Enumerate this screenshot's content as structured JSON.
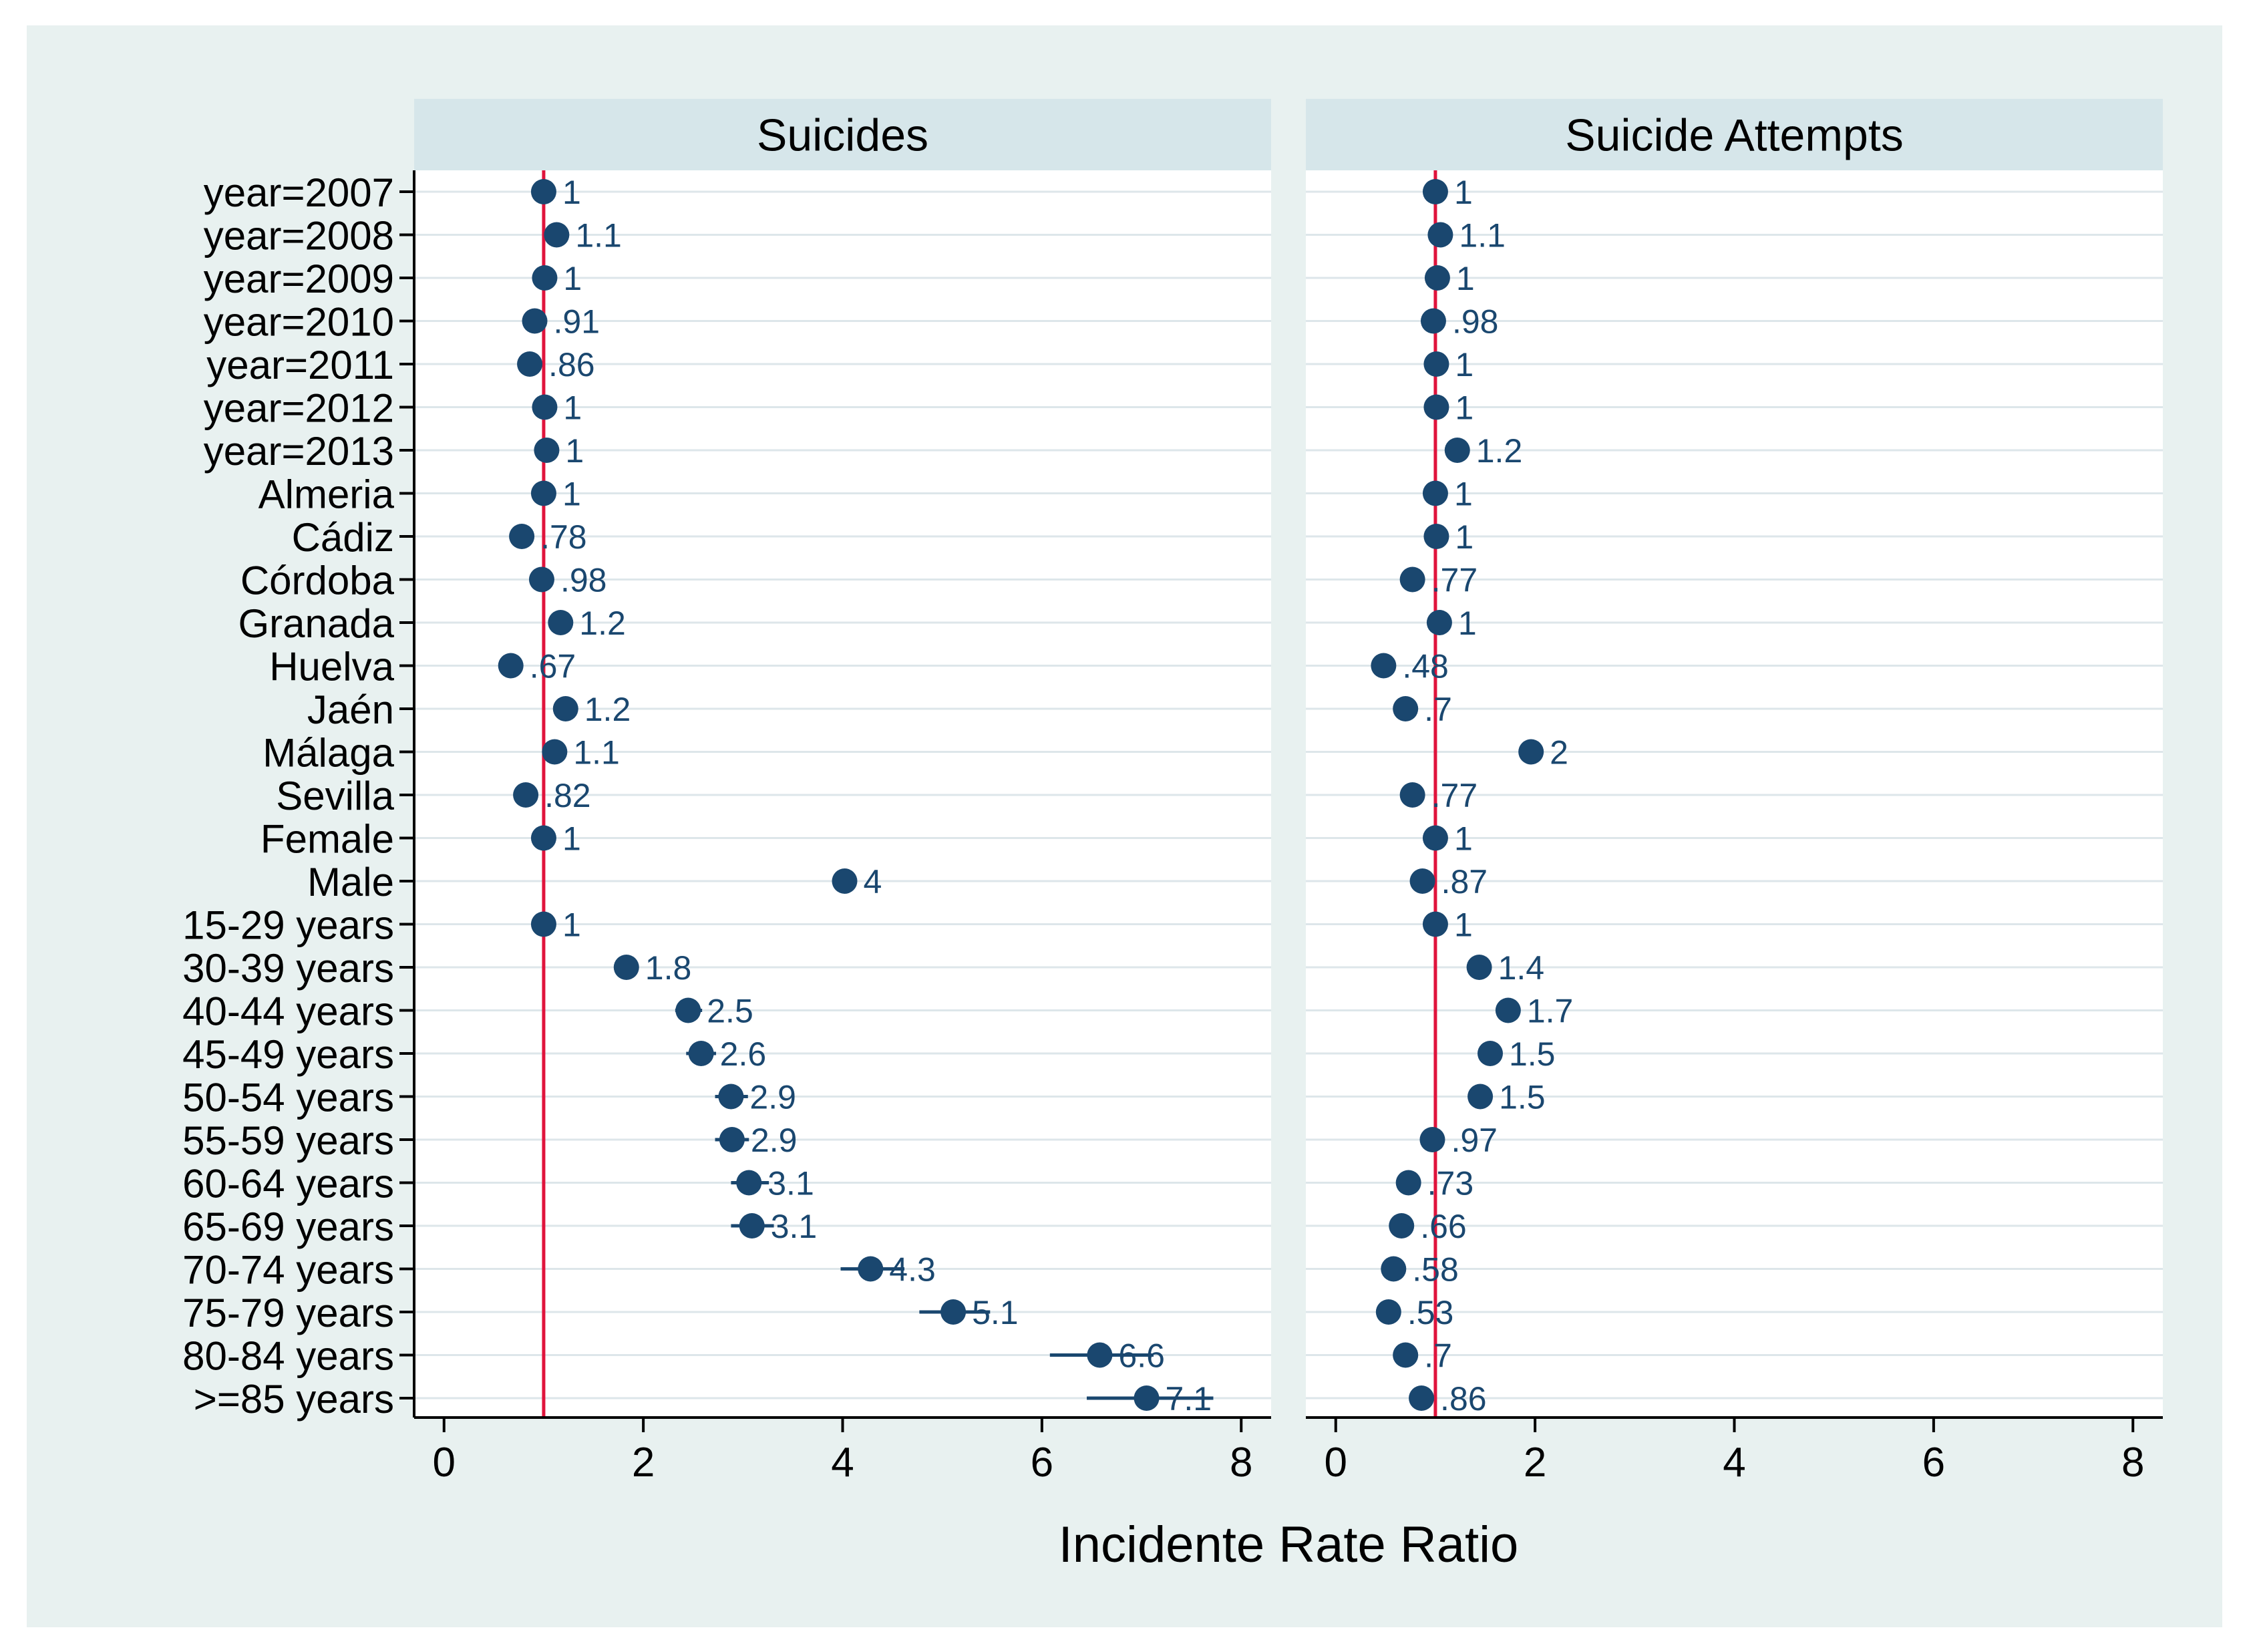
{
  "colors": {
    "page_bg": "#ffffff",
    "outer_bg": "#e8f1f0",
    "plot_bg": "#ffffff",
    "strip_bg": "#d6e6ea",
    "grid": "#dde6ea",
    "point": "#1a476f",
    "label": "#1a476f",
    "reference_line": "#e0143c",
    "axis": "#000000",
    "text": "#000000"
  },
  "chart_data": {
    "type": "scatter",
    "subtype": "coefficient-plot",
    "xlabel": "Incidente Rate Ratio",
    "xlim": [
      -0.3,
      8.3
    ],
    "xticks": [
      0,
      2,
      4,
      6,
      8
    ],
    "reference_line": 1,
    "grid": true,
    "categories": [
      "year=2007",
      "year=2008",
      "year=2009",
      "year=2010",
      "year=2011",
      "year=2012",
      "year=2013",
      "Almeria",
      "Cádiz",
      "Córdoba",
      "Granada",
      "Huelva",
      "Jaén",
      "Málaga",
      "Sevilla",
      "Female",
      "Male",
      "15-29 years",
      "30-39 years",
      "40-44 years",
      "45-49 years",
      "50-54 years",
      "55-59 years",
      "60-64 years",
      "65-69 years",
      "70-74 years",
      "75-79 years",
      "80-84 years",
      ">=85 years"
    ],
    "panels": [
      {
        "title": "Suicides",
        "values": [
          1,
          1.13,
          1.01,
          0.91,
          0.86,
          1.01,
          1.03,
          1,
          0.78,
          0.98,
          1.17,
          0.67,
          1.22,
          1.11,
          0.82,
          1,
          4.02,
          1,
          1.83,
          2.45,
          2.58,
          2.88,
          2.89,
          3.06,
          3.09,
          4.28,
          5.11,
          6.58,
          7.05
        ],
        "ci_low": [
          1,
          1.08,
          0.97,
          0.87,
          0.82,
          0.97,
          0.99,
          1,
          0.74,
          0.93,
          1.11,
          0.62,
          1.15,
          1.06,
          0.78,
          1,
          3.92,
          1,
          1.72,
          2.32,
          2.43,
          2.72,
          2.72,
          2.88,
          2.88,
          3.98,
          4.77,
          6.08,
          6.45
        ],
        "ci_high": [
          1,
          1.19,
          1.06,
          0.96,
          0.91,
          1.06,
          1.08,
          1,
          0.83,
          1.03,
          1.24,
          0.72,
          1.29,
          1.17,
          0.86,
          1,
          4.12,
          1,
          1.95,
          2.59,
          2.73,
          3.05,
          3.06,
          3.26,
          3.31,
          4.62,
          5.48,
          7.12,
          7.72
        ],
        "labels": [
          "1",
          "1.1",
          "1",
          ".91",
          ".86",
          "1",
          "1",
          "1",
          ".78",
          ".98",
          "1.2",
          ".67",
          "1.2",
          "1.1",
          ".82",
          "1",
          "4",
          "1",
          "1.8",
          "2.5",
          "2.6",
          "2.9",
          "2.9",
          "3.1",
          "3.1",
          "4.3",
          "5.1",
          "6.6",
          "7.1"
        ]
      },
      {
        "title": "Suicide Attempts",
        "values": [
          1,
          1.05,
          1.02,
          0.98,
          1.01,
          1.01,
          1.22,
          1,
          1.01,
          0.77,
          1.04,
          0.48,
          0.7,
          1.96,
          0.77,
          1,
          0.87,
          1,
          1.44,
          1.73,
          1.55,
          1.45,
          0.97,
          0.73,
          0.66,
          0.58,
          0.53,
          0.7,
          0.86
        ],
        "ci_low": [
          1,
          1.03,
          1,
          0.96,
          0.99,
          0.99,
          1.19,
          1,
          0.99,
          0.75,
          1.02,
          0.46,
          0.68,
          1.92,
          0.75,
          1,
          0.85,
          1,
          1.41,
          1.69,
          1.51,
          1.42,
          0.95,
          0.71,
          0.64,
          0.56,
          0.51,
          0.68,
          0.83
        ],
        "ci_high": [
          1,
          1.07,
          1.04,
          1,
          1.03,
          1.03,
          1.25,
          1,
          1.03,
          0.79,
          1.06,
          0.5,
          0.72,
          2,
          0.79,
          1,
          0.89,
          1,
          1.47,
          1.77,
          1.59,
          1.48,
          0.99,
          0.75,
          0.68,
          0.6,
          0.55,
          0.72,
          0.89
        ],
        "labels": [
          "1",
          "1.1",
          "1",
          ".98",
          "1",
          "1",
          "1.2",
          "1",
          "1",
          ".77",
          "1",
          ".48",
          ".7",
          "2",
          ".77",
          "1",
          ".87",
          "1",
          "1.4",
          "1.7",
          "1.5",
          "1.5",
          ".97",
          ".73",
          ".66",
          ".58",
          ".53",
          ".7",
          ".86"
        ]
      }
    ]
  }
}
